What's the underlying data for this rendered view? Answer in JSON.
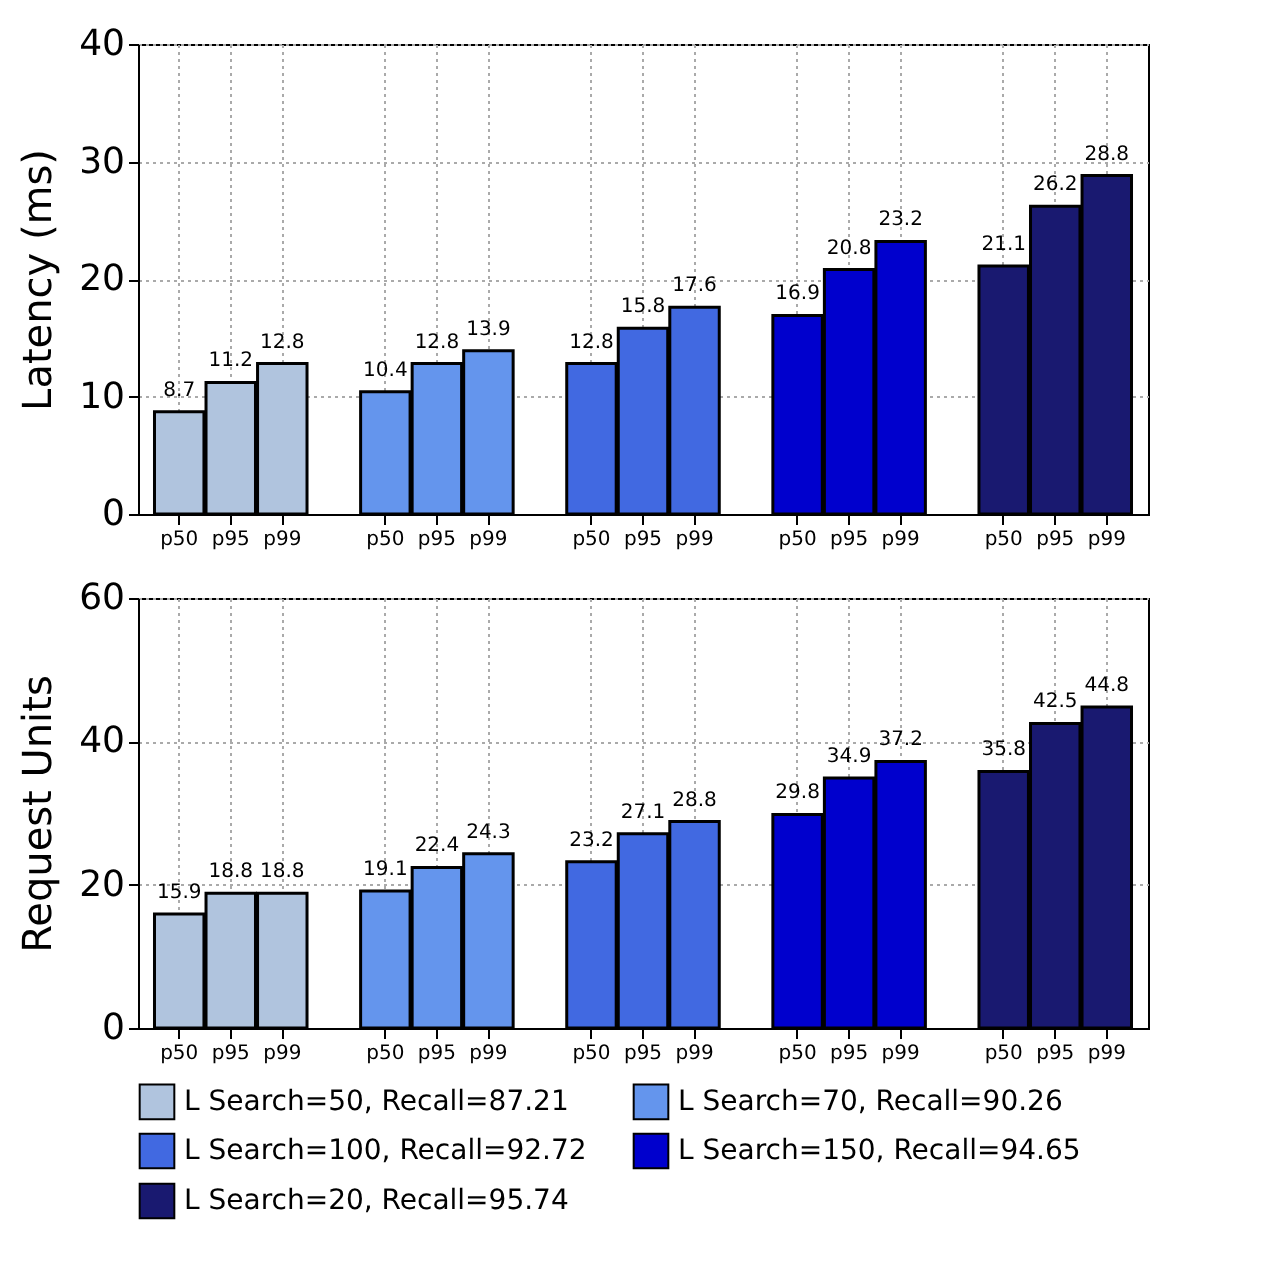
{
  "chart_data": [
    {
      "type": "bar",
      "ylabel": "Latency (ms)",
      "categories": [
        "p50",
        "p95",
        "p99",
        "p50",
        "p95",
        "p99",
        "p50",
        "p95",
        "p99",
        "p50",
        "p95",
        "p99",
        "p50",
        "p95",
        "p99"
      ],
      "series": [
        {
          "color": "#b0c4de",
          "values": [
            8.7,
            11.2,
            12.8,
            null,
            null,
            null,
            null,
            null,
            null,
            null,
            null,
            null,
            null,
            null,
            null
          ]
        },
        {
          "color": "#6495ed",
          "values": [
            null,
            null,
            null,
            10.4,
            12.8,
            13.9,
            null,
            null,
            null,
            null,
            null,
            null,
            null,
            null,
            null
          ]
        },
        {
          "color": "#4169e1",
          "values": [
            null,
            null,
            null,
            null,
            null,
            null,
            12.8,
            15.8,
            17.6,
            null,
            null,
            null,
            null,
            null,
            null
          ]
        },
        {
          "color": "#0000cd",
          "values": [
            null,
            null,
            null,
            null,
            null,
            null,
            null,
            null,
            null,
            16.9,
            20.8,
            23.2,
            null,
            null,
            null
          ]
        },
        {
          "color": "#191970",
          "values": [
            null,
            null,
            null,
            null,
            null,
            null,
            null,
            null,
            null,
            null,
            null,
            null,
            21.1,
            26.2,
            28.8
          ]
        }
      ],
      "ylim": [
        0,
        40
      ],
      "yticks": [
        0,
        10,
        20,
        30,
        40
      ],
      "grid": true,
      "data_labels": true
    },
    {
      "type": "bar",
      "ylabel": "Request Units",
      "categories": [
        "p50",
        "p95",
        "p99",
        "p50",
        "p95",
        "p99",
        "p50",
        "p95",
        "p99",
        "p50",
        "p95",
        "p99",
        "p50",
        "p95",
        "p99"
      ],
      "series": [
        {
          "name": "L Search=50, Recall=87.21",
          "color": "#b0c4de",
          "values": [
            15.9,
            18.8,
            18.8,
            null,
            null,
            null,
            null,
            null,
            null,
            null,
            null,
            null,
            null,
            null,
            null
          ]
        },
        {
          "name": "L Search=70, Recall=90.26",
          "color": "#6495ed",
          "values": [
            null,
            null,
            null,
            19.1,
            22.4,
            24.3,
            null,
            null,
            null,
            null,
            null,
            null,
            null,
            null,
            null
          ]
        },
        {
          "name": "L Search=100, Recall=92.72",
          "color": "#4169e1",
          "values": [
            null,
            null,
            null,
            null,
            null,
            null,
            23.2,
            27.1,
            28.8,
            null,
            null,
            null,
            null,
            null,
            null
          ]
        },
        {
          "name": "L Search=150, Recall=94.65",
          "color": "#0000cd",
          "values": [
            null,
            null,
            null,
            null,
            null,
            null,
            null,
            null,
            null,
            29.8,
            34.9,
            37.2,
            null,
            null,
            null
          ]
        },
        {
          "name": "L Search=20, Recall=95.74",
          "color": "#191970",
          "values": [
            null,
            null,
            null,
            null,
            null,
            null,
            null,
            null,
            null,
            null,
            null,
            null,
            35.8,
            42.5,
            44.8
          ]
        }
      ],
      "ylim": [
        0,
        60
      ],
      "yticks": [
        0,
        20,
        40,
        60
      ],
      "grid": true,
      "data_labels": true,
      "legend": "bottom"
    }
  ]
}
